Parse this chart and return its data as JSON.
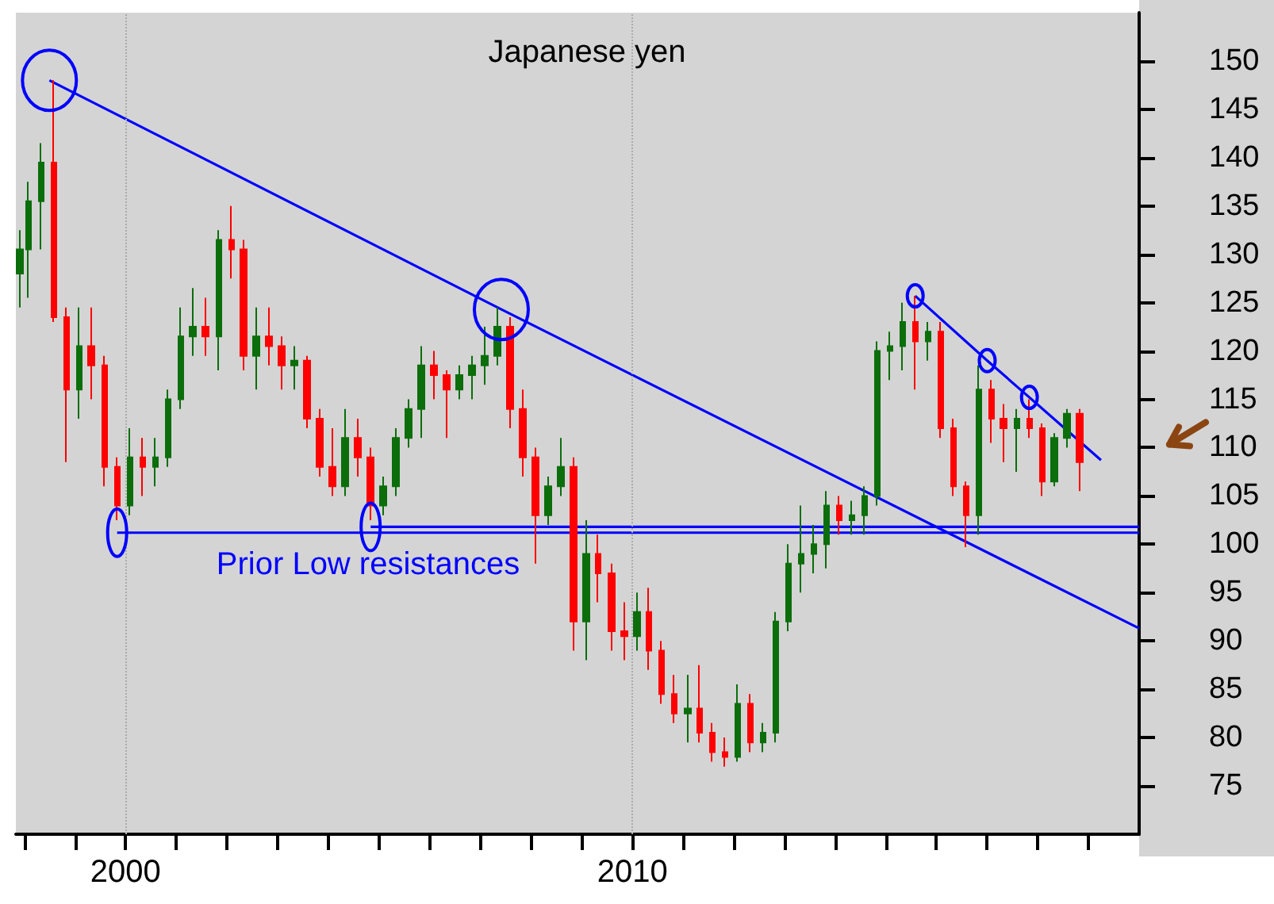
{
  "chart_data": {
    "type": "candlestick",
    "title": "Japanese yen",
    "annotations": [
      "Prior Low resistances"
    ],
    "x": [
      "1997-12",
      "1998-02",
      "1998-05",
      "1998-08",
      "1998-11",
      "1999-02",
      "1999-05",
      "1999-08",
      "1999-11",
      "2000-02",
      "2000-05",
      "2000-08",
      "2000-11",
      "2001-02",
      "2001-05",
      "2001-08",
      "2001-11",
      "2002-02",
      "2002-05",
      "2002-08",
      "2002-11",
      "2003-02",
      "2003-05",
      "2003-08",
      "2003-11",
      "2004-02",
      "2004-05",
      "2004-08",
      "2004-11",
      "2005-02",
      "2005-05",
      "2005-08",
      "2005-11",
      "2006-02",
      "2006-05",
      "2006-08",
      "2006-11",
      "2007-02",
      "2007-05",
      "2007-08",
      "2007-11",
      "2008-02",
      "2008-05",
      "2008-08",
      "2008-11",
      "2009-02",
      "2009-05",
      "2009-08",
      "2009-11",
      "2010-02",
      "2010-05",
      "2010-08",
      "2010-11",
      "2011-02",
      "2011-05",
      "2011-08",
      "2011-11",
      "2012-02",
      "2012-05",
      "2012-08",
      "2012-11",
      "2013-02",
      "2013-05",
      "2013-08",
      "2013-11",
      "2014-02",
      "2014-05",
      "2014-08",
      "2014-11",
      "2015-02",
      "2015-05",
      "2015-08",
      "2015-11",
      "2016-02",
      "2016-05",
      "2016-08",
      "2016-11",
      "2017-02",
      "2017-05",
      "2017-08",
      "2017-11",
      "2018-02",
      "2018-05",
      "2018-08",
      "2018-11"
    ],
    "ohlc": [
      [
        128,
        132.5,
        124.5,
        130.5
      ],
      [
        130.5,
        137.5,
        125.5,
        135.5
      ],
      [
        135.5,
        141.5,
        130.5,
        139.5
      ],
      [
        139.5,
        148,
        123,
        123.5
      ],
      [
        123.5,
        124.5,
        108.5,
        116
      ],
      [
        116,
        124.5,
        113,
        120.5
      ],
      [
        120.5,
        124.5,
        115,
        118.5
      ],
      [
        118.5,
        119.5,
        106,
        108
      ],
      [
        108,
        109,
        102.5,
        104
      ],
      [
        104,
        112,
        103,
        109
      ],
      [
        109,
        111,
        105,
        108
      ],
      [
        108,
        111,
        106,
        109
      ],
      [
        109,
        116,
        108,
        115
      ],
      [
        115,
        124.5,
        114,
        121.5
      ],
      [
        121.5,
        126.5,
        119.5,
        122.5
      ],
      [
        122.5,
        125.5,
        119.5,
        121.5
      ],
      [
        121.5,
        132.5,
        118,
        131.5
      ],
      [
        131.5,
        135,
        127.5,
        130.5
      ],
      [
        130.5,
        131.5,
        118,
        119.5
      ],
      [
        119.5,
        124.5,
        116,
        121.5
      ],
      [
        121.5,
        124.5,
        118.5,
        120.5
      ],
      [
        120.5,
        121.5,
        116,
        118.5
      ],
      [
        118.5,
        120.5,
        116,
        119
      ],
      [
        119,
        119.5,
        112,
        113
      ],
      [
        113,
        114,
        107,
        108
      ],
      [
        108,
        112,
        105,
        106
      ],
      [
        106,
        114,
        105,
        111
      ],
      [
        111,
        113,
        107,
        109
      ],
      [
        109,
        110,
        102.5,
        104
      ],
      [
        104,
        107,
        103,
        106
      ],
      [
        106,
        112,
        105,
        111
      ],
      [
        111,
        115,
        110,
        114
      ],
      [
        114,
        120.5,
        111,
        118.5
      ],
      [
        118.5,
        120,
        115,
        117.5
      ],
      [
        117.5,
        118,
        111,
        116
      ],
      [
        116,
        118.5,
        115,
        117.5
      ],
      [
        117.5,
        119.5,
        115,
        118.5
      ],
      [
        118.5,
        122.5,
        116.5,
        119.5
      ],
      [
        119.5,
        124.5,
        118.5,
        122.5
      ],
      [
        122.5,
        123.5,
        112,
        114
      ],
      [
        114,
        116,
        107,
        109
      ],
      [
        109,
        110,
        98,
        103
      ],
      [
        103,
        107,
        102,
        106
      ],
      [
        106,
        111,
        105,
        108
      ],
      [
        108,
        109,
        89,
        92
      ],
      [
        92,
        102.5,
        88,
        99
      ],
      [
        99,
        101,
        94,
        97
      ],
      [
        97,
        98,
        89,
        91
      ],
      [
        91,
        94,
        88,
        90.5
      ],
      [
        90.5,
        95,
        89,
        93
      ],
      [
        93,
        95.5,
        87,
        89
      ],
      [
        89,
        90,
        83.5,
        84.5
      ],
      [
        84.5,
        86.5,
        81.5,
        82.5
      ],
      [
        82.5,
        86.5,
        79.5,
        83
      ],
      [
        83,
        87.5,
        79.5,
        80.5
      ],
      [
        80.5,
        81.5,
        77.5,
        78.5
      ],
      [
        78.5,
        80,
        77,
        78
      ],
      [
        78,
        85.5,
        77.5,
        83.5
      ],
      [
        83.5,
        84.5,
        78.5,
        79.5
      ],
      [
        79.5,
        81.5,
        78.5,
        80.5
      ],
      [
        80.5,
        93,
        79.5,
        92
      ],
      [
        92,
        100,
        91,
        98
      ],
      [
        98,
        104,
        95,
        99
      ],
      [
        99,
        102,
        97,
        100
      ],
      [
        100,
        105.5,
        97.5,
        104
      ],
      [
        104,
        105,
        101,
        102.5
      ],
      [
        102.5,
        104.5,
        101,
        103
      ],
      [
        103,
        106,
        101,
        105
      ],
      [
        105,
        121,
        104,
        120
      ],
      [
        120,
        122,
        117,
        120.5
      ],
      [
        120.5,
        125,
        118,
        123
      ],
      [
        123,
        125.7,
        116,
        121
      ],
      [
        121,
        123,
        119,
        122
      ],
      [
        122,
        123,
        111,
        112
      ],
      [
        112,
        113,
        105,
        106
      ],
      [
        106,
        106.5,
        99.7,
        103
      ],
      [
        103,
        118.5,
        101,
        116
      ],
      [
        116,
        117,
        110.5,
        113
      ],
      [
        113,
        114.5,
        108.5,
        112
      ],
      [
        112,
        114,
        107.5,
        113
      ],
      [
        113,
        115,
        111,
        112
      ],
      [
        112,
        112.5,
        105,
        106.5
      ],
      [
        106.5,
        111.5,
        106,
        111
      ],
      [
        111,
        114,
        110,
        113.5
      ],
      [
        113.5,
        114,
        105.5,
        108.5
      ]
    ],
    "colors": [
      "#0b6e0b",
      "#0b6e0b",
      "#0b6e0b",
      "#ff0000",
      "#ff0000",
      "#0b6e0b",
      "#ff0000",
      "#ff0000",
      "#ff0000",
      "#0b6e0b",
      "#ff0000",
      "#0b6e0b",
      "#0b6e0b",
      "#0b6e0b",
      "#0b6e0b",
      "#ff0000",
      "#0b6e0b",
      "#ff0000",
      "#ff0000",
      "#0b6e0b",
      "#ff0000",
      "#ff0000",
      "#0b6e0b",
      "#ff0000",
      "#ff0000",
      "#ff0000",
      "#0b6e0b",
      "#ff0000",
      "#ff0000",
      "#0b6e0b",
      "#0b6e0b",
      "#0b6e0b",
      "#0b6e0b",
      "#ff0000",
      "#ff0000",
      "#0b6e0b",
      "#0b6e0b",
      "#0b6e0b",
      "#0b6e0b",
      "#ff0000",
      "#ff0000",
      "#ff0000",
      "#0b6e0b",
      "#0b6e0b",
      "#ff0000",
      "#0b6e0b",
      "#ff0000",
      "#ff0000",
      "#ff0000",
      "#0b6e0b",
      "#ff0000",
      "#ff0000",
      "#ff0000",
      "#0b6e0b",
      "#ff0000",
      "#ff0000",
      "#ff0000",
      "#0b6e0b",
      "#ff0000",
      "#0b6e0b",
      "#0b6e0b",
      "#0b6e0b",
      "#0b6e0b",
      "#0b6e0b",
      "#0b6e0b",
      "#ff0000",
      "#0b6e0b",
      "#0b6e0b",
      "#0b6e0b",
      "#0b6e0b",
      "#0b6e0b",
      "#ff0000",
      "#0b6e0b",
      "#ff0000",
      "#ff0000",
      "#ff0000",
      "#0b6e0b",
      "#ff0000",
      "#ff0000",
      "#0b6e0b",
      "#ff0000",
      "#ff0000",
      "#0b6e0b",
      "#0b6e0b",
      "#ff0000"
    ],
    "series": [
      {
        "type": "line",
        "color": "#0000ff",
        "x": [
          "1998-07",
          "2007-06",
          "2020-01"
        ],
        "values": [
          148,
          124.3,
          91.3
        ]
      },
      {
        "type": "line",
        "color": "#0000ff",
        "x": [
          "1999-11",
          "2020-01"
        ],
        "values": [
          101.2,
          101.2
        ]
      },
      {
        "type": "line",
        "color": "#0000ff",
        "x": [
          "2004-11",
          "2020-01"
        ],
        "values": [
          101.8,
          101.8
        ]
      },
      {
        "type": "line",
        "color": "#0000ff",
        "x": [
          "2015-08",
          "2017-01",
          "2017-11",
          "2019-04"
        ],
        "values": [
          125.7,
          119,
          115.2,
          108.7
        ]
      }
    ],
    "ref_lines": [
      {
        "axis": "x",
        "value": "2000",
        "color": "#aaaaaa",
        "line_style": "dotted"
      },
      {
        "axis": "x",
        "value": "2010",
        "color": "#aaaaaa",
        "line_style": "dotted"
      }
    ],
    "xlim": [
      "1997-11",
      "2020-01"
    ],
    "xticks": [
      {
        "value": "1998",
        "label": null
      },
      {
        "value": "1999",
        "label": null
      },
      {
        "value": "2000",
        "label": "2000"
      },
      {
        "value": "2001",
        "label": null
      },
      {
        "value": "2002",
        "label": null
      },
      {
        "value": "2003",
        "label": null
      },
      {
        "value": "2004",
        "label": null
      },
      {
        "value": "2005",
        "label": null
      },
      {
        "value": "2006",
        "label": null
      },
      {
        "value": "2007",
        "label": null
      },
      {
        "value": "2008",
        "label": null
      },
      {
        "value": "2009",
        "label": null
      },
      {
        "value": "2010",
        "label": "2010"
      },
      {
        "value": "2011",
        "label": null
      },
      {
        "value": "2012",
        "label": null
      },
      {
        "value": "2013",
        "label": null
      },
      {
        "value": "2014",
        "label": null
      },
      {
        "value": "2015",
        "label": null
      },
      {
        "value": "2016",
        "label": null
      },
      {
        "value": "2017",
        "label": null
      },
      {
        "value": "2018",
        "label": null
      },
      {
        "value": "2019",
        "label": null
      }
    ],
    "ylim": [
      70,
      155
    ],
    "yticks": [
      75,
      80,
      85,
      90,
      95,
      100,
      105,
      110,
      115,
      120,
      125,
      130,
      135,
      140,
      145,
      150
    ]
  }
}
